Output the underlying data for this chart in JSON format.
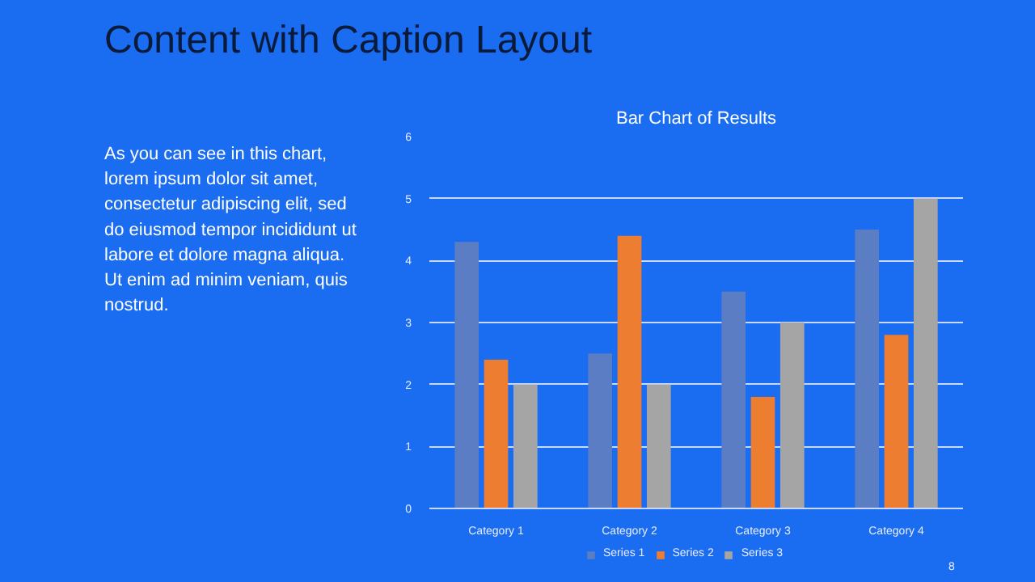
{
  "chart_data": {
    "type": "bar",
    "title": "Bar Chart of Results",
    "annotations": [
      "Content with Caption Layout",
      "As you can see in this chart, lorem ipsum dolor sit amet, consectetur adipiscing elit, sed do eiusmod tempor incididunt ut labore et dolore magna aliqua. Ut enim ad minim veniam, quis nostrud.",
      "8"
    ],
    "categories": [
      "Category 1",
      "Category 2",
      "Category 3",
      "Category 4"
    ],
    "series": [
      {
        "name": "Series 1",
        "color": "#5b7dc4",
        "values": [
          4.3,
          2.5,
          3.5,
          4.5
        ]
      },
      {
        "name": "Series 2",
        "color": "#ed7d31",
        "values": [
          2.4,
          4.4,
          1.8,
          2.8
        ]
      },
      {
        "name": "Series 3",
        "color": "#a5a5a5",
        "values": [
          2,
          2,
          3,
          5
        ]
      }
    ],
    "ylim": [
      0,
      6
    ],
    "yticks": [
      0,
      1,
      2,
      3,
      4,
      5,
      6
    ],
    "grid": "y",
    "legend": "bottom"
  }
}
